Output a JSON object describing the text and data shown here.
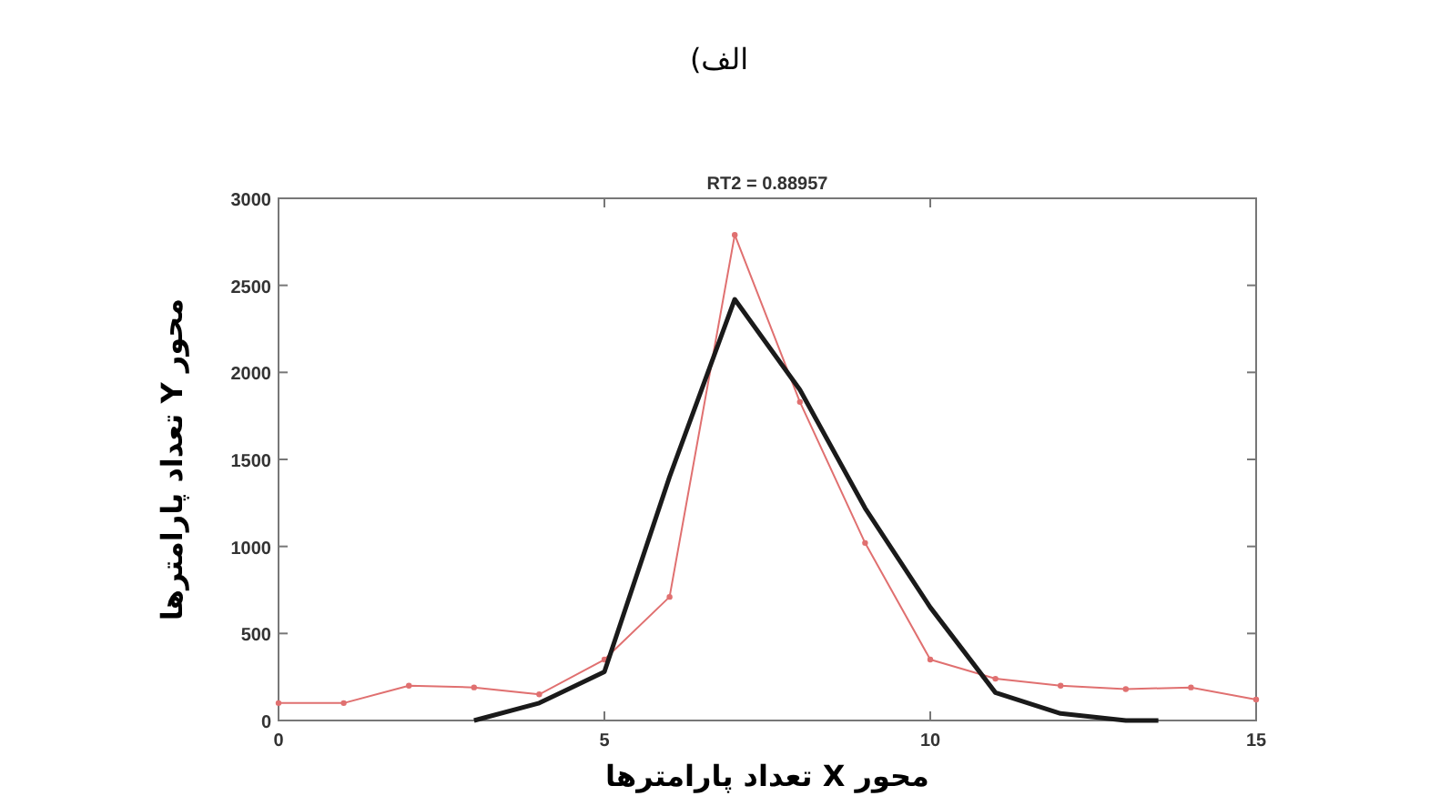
{
  "chart_data": {
    "type": "line",
    "title": "الف)",
    "subtitle": "RT2 = 0.88957",
    "xlabel": "محور X تعداد پارامترها",
    "ylabel": "محور Y تعداد پارامترها",
    "xlim": [
      0,
      15
    ],
    "ylim": [
      0,
      3000
    ],
    "xticks": [
      0,
      5,
      10,
      15
    ],
    "yticks": [
      0,
      500,
      1000,
      1500,
      2000,
      2500,
      3000
    ],
    "grid": false,
    "series": [
      {
        "color": "#e07070",
        "marker": "circle",
        "x": [
          0,
          1,
          2,
          3,
          4,
          5,
          6,
          7,
          8,
          9,
          10,
          11,
          12,
          13,
          14,
          15
        ],
        "values": [
          100,
          100,
          200,
          190,
          150,
          350,
          710,
          2790,
          1830,
          1020,
          350,
          240,
          200,
          180,
          190,
          120
        ]
      },
      {
        "color": "#1a1a1a",
        "marker": "none",
        "x": [
          3,
          4,
          5,
          6,
          7,
          8,
          9,
          10,
          11,
          12,
          13,
          13.5
        ],
        "values": [
          0,
          100,
          280,
          1400,
          2420,
          1900,
          1220,
          650,
          160,
          40,
          0,
          0
        ]
      }
    ]
  }
}
